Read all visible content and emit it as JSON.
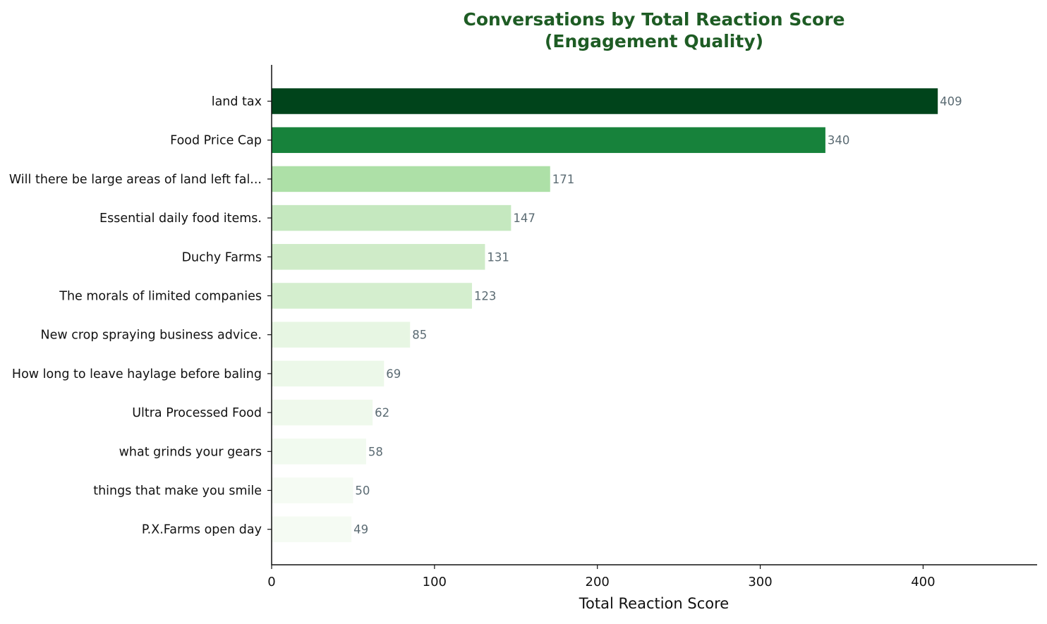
{
  "chart_data": {
    "type": "bar",
    "orientation": "horizontal",
    "title": "Conversations by Total Reaction Score",
    "subtitle": "(Engagement Quality)",
    "xlabel": "Total Reaction Score",
    "ylabel": "",
    "xlim": [
      0,
      470
    ],
    "xticks": [
      0,
      100,
      200,
      300,
      400
    ],
    "grid": false,
    "categories": [
      "land tax",
      "Food Price Cap",
      "Will there be large areas of land left fal...",
      "Essential daily food items.",
      "Duchy Farms",
      "The morals of limited companies",
      "New crop spraying business advice.",
      "How long to leave haylage before baling",
      "Ultra Processed Food",
      "what grinds your gears",
      "things that make you smile",
      "P.X.Farms open day"
    ],
    "values": [
      409,
      340,
      171,
      147,
      131,
      123,
      85,
      69,
      62,
      58,
      50,
      49
    ],
    "colors": [
      "#00441b",
      "#17823b",
      "#ade0a7",
      "#c5e8bf",
      "#cfebc8",
      "#d4eece",
      "#e7f6e3",
      "#ecf8e9",
      "#eff9ec",
      "#f1faef",
      "#f5fbf3",
      "#f5fbf3"
    ],
    "title_color": "#1e5c24",
    "value_label_color": "#5b6b73"
  }
}
